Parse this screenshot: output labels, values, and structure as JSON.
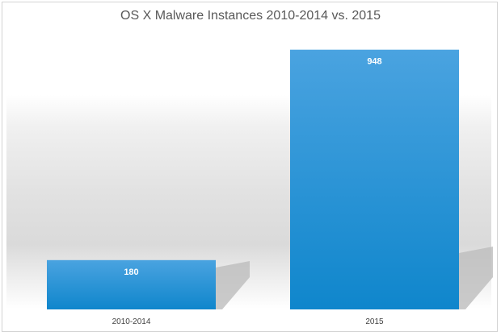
{
  "chart_data": {
    "type": "bar",
    "title": "OS X Malware Instances 2010-2014 vs. 2015",
    "categories": [
      "2010-2014",
      "2015"
    ],
    "values": [
      180,
      948
    ],
    "data_labels": [
      "180",
      "948"
    ],
    "xlabel": "",
    "ylabel": "",
    "ylim": [
      0,
      1000
    ],
    "grid": false,
    "legend": "none",
    "colors": {
      "bar": "#2a92d6",
      "bar_top": "#4aa3e0",
      "shadow": "#bdbdbd",
      "label": "#ffffff"
    }
  }
}
